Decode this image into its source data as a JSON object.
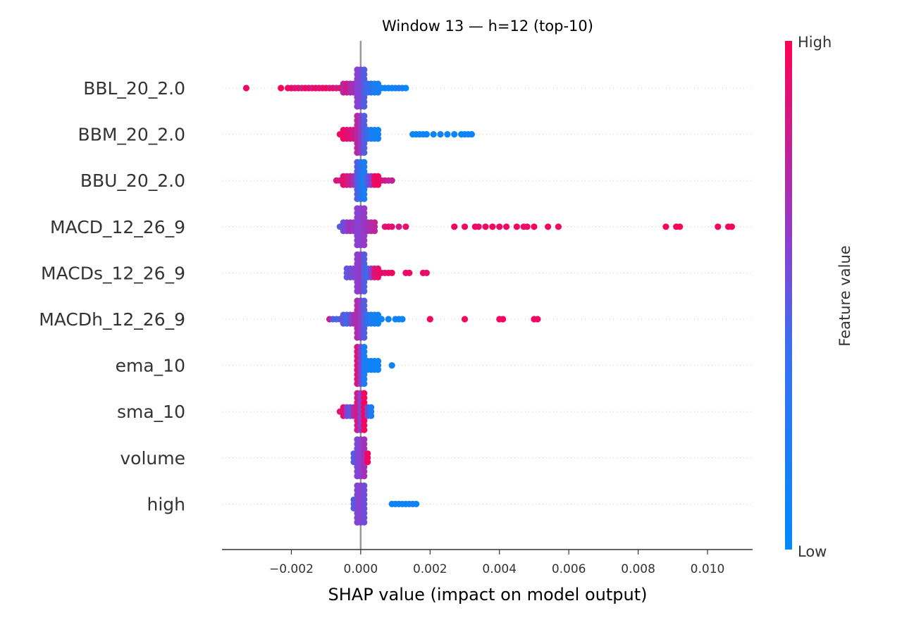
{
  "chart_data": {
    "type": "scatter",
    "subtype": "shap-beeswarm",
    "title": "Window 13 — h=12 (top-10)",
    "xlabel": "SHAP value (impact on model output)",
    "xlim": [
      -0.004,
      0.0113
    ],
    "xticks": [
      -0.002,
      0.0,
      0.002,
      0.004,
      0.006,
      0.008,
      0.01
    ],
    "xtick_labels": [
      "−0.002",
      "0.000",
      "0.002",
      "0.004",
      "0.006",
      "0.008",
      "0.010"
    ],
    "zero_line": 0.0,
    "grid": "dotted horizontal per feature",
    "colorbar": {
      "title": "Feature value",
      "high_label": "High",
      "low_label": "Low",
      "low_color": "#008bfb",
      "high_color": "#ff0052"
    },
    "features": [
      {
        "name": "BBL_20_2.0",
        "points": [
          {
            "x": -0.0033,
            "f": 0.92
          },
          {
            "x": -0.0023,
            "f": 0.98
          },
          {
            "x": -0.0021,
            "f": 0.9
          },
          {
            "x": -0.002,
            "f": 0.95
          },
          {
            "x": -0.0019,
            "f": 0.85
          },
          {
            "x": -0.0018,
            "f": 0.9
          },
          {
            "x": -0.0017,
            "f": 0.8
          },
          {
            "x": -0.0016,
            "f": 0.95
          },
          {
            "x": -0.0015,
            "f": 0.88
          },
          {
            "x": -0.0014,
            "f": 0.82
          },
          {
            "x": -0.0013,
            "f": 0.92
          },
          {
            "x": -0.0012,
            "f": 0.86
          },
          {
            "x": -0.0011,
            "f": 0.9
          },
          {
            "x": -0.001,
            "f": 0.95
          },
          {
            "x": -0.0009,
            "f": 0.84
          },
          {
            "x": -0.0008,
            "f": 0.9
          },
          {
            "x": -0.0007,
            "f": 0.78
          },
          {
            "x": -0.0006,
            "f": 0.85
          },
          {
            "x": -0.0005,
            "f": 0.7
          },
          {
            "x": -0.0004,
            "f": 0.8
          },
          {
            "x": -0.0003,
            "f": 0.65
          },
          {
            "x": -0.0002,
            "f": 0.6
          },
          {
            "x": -0.0001,
            "f": 0.5
          },
          {
            "x": 0.0,
            "f": 0.45
          },
          {
            "x": 0.0001,
            "f": 0.3
          },
          {
            "x": 0.0002,
            "f": 0.2
          },
          {
            "x": 0.0003,
            "f": 0.15
          },
          {
            "x": 0.0004,
            "f": 0.1
          },
          {
            "x": 0.0005,
            "f": 0.08
          },
          {
            "x": 0.0006,
            "f": 0.05
          },
          {
            "x": 0.0007,
            "f": 0.06
          },
          {
            "x": 0.0008,
            "f": 0.04
          },
          {
            "x": 0.0009,
            "f": 0.05
          },
          {
            "x": 0.001,
            "f": 0.03
          },
          {
            "x": 0.0011,
            "f": 0.12
          },
          {
            "x": 0.0012,
            "f": 0.06
          },
          {
            "x": 0.0013,
            "f": 0.02
          }
        ]
      },
      {
        "name": "BBM_20_2.0",
        "points": [
          {
            "x": -0.0006,
            "f": 0.9
          },
          {
            "x": -0.0005,
            "f": 0.95
          },
          {
            "x": -0.0004,
            "f": 0.88
          },
          {
            "x": -0.0003,
            "f": 0.85
          },
          {
            "x": -0.0002,
            "f": 0.8
          },
          {
            "x": -0.0001,
            "f": 0.7
          },
          {
            "x": 0.0,
            "f": 0.55
          },
          {
            "x": 0.0001,
            "f": 0.3
          },
          {
            "x": 0.0002,
            "f": 0.2
          },
          {
            "x": 0.0003,
            "f": 0.1
          },
          {
            "x": 0.0004,
            "f": 0.08
          },
          {
            "x": 0.0005,
            "f": 0.05
          },
          {
            "x": 0.0015,
            "f": 0.05
          },
          {
            "x": 0.0016,
            "f": 0.03
          },
          {
            "x": 0.0017,
            "f": 0.06
          },
          {
            "x": 0.0018,
            "f": 0.04
          },
          {
            "x": 0.0019,
            "f": 0.05
          },
          {
            "x": 0.0021,
            "f": 0.03
          },
          {
            "x": 0.0023,
            "f": 0.06
          },
          {
            "x": 0.0025,
            "f": 0.04
          },
          {
            "x": 0.0027,
            "f": 0.05
          },
          {
            "x": 0.0029,
            "f": 0.03
          },
          {
            "x": 0.003,
            "f": 0.05
          },
          {
            "x": 0.0031,
            "f": 0.04
          },
          {
            "x": 0.0032,
            "f": 0.06
          }
        ]
      },
      {
        "name": "BBU_20_2.0",
        "points": [
          {
            "x": -0.0007,
            "f": 0.85
          },
          {
            "x": -0.0006,
            "f": 0.8
          },
          {
            "x": -0.0005,
            "f": 0.9
          },
          {
            "x": -0.0004,
            "f": 0.82
          },
          {
            "x": -0.0003,
            "f": 0.75
          },
          {
            "x": -0.0002,
            "f": 0.6
          },
          {
            "x": -0.0001,
            "f": 0.3
          },
          {
            "x": 0.0,
            "f": 0.15
          },
          {
            "x": 0.0001,
            "f": 0.1
          },
          {
            "x": 0.0002,
            "f": 0.3
          },
          {
            "x": 0.0003,
            "f": 0.5
          },
          {
            "x": 0.0004,
            "f": 0.92
          },
          {
            "x": 0.0005,
            "f": 0.95
          },
          {
            "x": 0.0006,
            "f": 0.88
          },
          {
            "x": 0.0007,
            "f": 0.8
          },
          {
            "x": 0.0008,
            "f": 0.7
          },
          {
            "x": 0.0009,
            "f": 0.75
          }
        ]
      },
      {
        "name": "MACD_12_26_9",
        "points": [
          {
            "x": -0.0006,
            "f": 0.3
          },
          {
            "x": -0.0005,
            "f": 0.4
          },
          {
            "x": -0.0004,
            "f": 0.5
          },
          {
            "x": -0.0003,
            "f": 0.6
          },
          {
            "x": -0.0002,
            "f": 0.55
          },
          {
            "x": -0.0001,
            "f": 0.5
          },
          {
            "x": 0.0,
            "f": 0.5
          },
          {
            "x": 0.0001,
            "f": 0.55
          },
          {
            "x": 0.0002,
            "f": 0.6
          },
          {
            "x": 0.0003,
            "f": 0.65
          },
          {
            "x": 0.0004,
            "f": 0.7
          },
          {
            "x": 0.0007,
            "f": 0.85
          },
          {
            "x": 0.0008,
            "f": 0.9
          },
          {
            "x": 0.0009,
            "f": 0.88
          },
          {
            "x": 0.0011,
            "f": 0.8
          },
          {
            "x": 0.0013,
            "f": 0.9
          },
          {
            "x": 0.0027,
            "f": 0.95
          },
          {
            "x": 0.003,
            "f": 0.92
          },
          {
            "x": 0.0033,
            "f": 0.95
          },
          {
            "x": 0.0034,
            "f": 0.9
          },
          {
            "x": 0.0036,
            "f": 0.93
          },
          {
            "x": 0.0038,
            "f": 0.95
          },
          {
            "x": 0.004,
            "f": 0.92
          },
          {
            "x": 0.0042,
            "f": 0.94
          },
          {
            "x": 0.0045,
            "f": 0.95
          },
          {
            "x": 0.0047,
            "f": 0.9
          },
          {
            "x": 0.0048,
            "f": 0.93
          },
          {
            "x": 0.005,
            "f": 0.96
          },
          {
            "x": 0.0054,
            "f": 0.95
          },
          {
            "x": 0.0057,
            "f": 0.94
          },
          {
            "x": 0.0088,
            "f": 0.96
          },
          {
            "x": 0.0091,
            "f": 0.95
          },
          {
            "x": 0.0092,
            "f": 0.97
          },
          {
            "x": 0.0103,
            "f": 0.96
          },
          {
            "x": 0.0106,
            "f": 0.95
          },
          {
            "x": 0.0107,
            "f": 0.97
          }
        ]
      },
      {
        "name": "MACDs_12_26_9",
        "points": [
          {
            "x": -0.0004,
            "f": 0.35
          },
          {
            "x": -0.0003,
            "f": 0.4
          },
          {
            "x": -0.0002,
            "f": 0.45
          },
          {
            "x": -0.0001,
            "f": 0.5
          },
          {
            "x": 0.0,
            "f": 0.55
          },
          {
            "x": 0.0001,
            "f": 0.3
          },
          {
            "x": 0.0002,
            "f": 0.2
          },
          {
            "x": 0.0003,
            "f": 0.5
          },
          {
            "x": 0.0004,
            "f": 0.85
          },
          {
            "x": 0.0005,
            "f": 0.9
          },
          {
            "x": 0.0006,
            "f": 0.92
          },
          {
            "x": 0.0007,
            "f": 0.88
          },
          {
            "x": 0.0008,
            "f": 0.9
          },
          {
            "x": 0.0009,
            "f": 0.95
          },
          {
            "x": 0.0013,
            "f": 0.9
          },
          {
            "x": 0.0014,
            "f": 0.93
          },
          {
            "x": 0.0018,
            "f": 0.95
          },
          {
            "x": 0.0019,
            "f": 0.9
          }
        ]
      },
      {
        "name": "MACDh_12_26_9",
        "points": [
          {
            "x": -0.0009,
            "f": 0.75
          },
          {
            "x": -0.0008,
            "f": 0.3
          },
          {
            "x": -0.0007,
            "f": 0.25
          },
          {
            "x": -0.0006,
            "f": 0.3
          },
          {
            "x": -0.0005,
            "f": 0.35
          },
          {
            "x": -0.0004,
            "f": 0.2
          },
          {
            "x": -0.0003,
            "f": 0.4
          },
          {
            "x": -0.0002,
            "f": 0.6
          },
          {
            "x": -0.0001,
            "f": 0.65
          },
          {
            "x": 0.0,
            "f": 0.55
          },
          {
            "x": 0.0001,
            "f": 0.3
          },
          {
            "x": 0.0002,
            "f": 0.15
          },
          {
            "x": 0.0003,
            "f": 0.1
          },
          {
            "x": 0.0004,
            "f": 0.08
          },
          {
            "x": 0.0005,
            "f": 0.05
          },
          {
            "x": 0.0006,
            "f": 0.04
          },
          {
            "x": 0.0008,
            "f": 0.05
          },
          {
            "x": 0.001,
            "f": 0.04
          },
          {
            "x": 0.0011,
            "f": 0.06
          },
          {
            "x": 0.0012,
            "f": 0.05
          },
          {
            "x": 0.002,
            "f": 0.95
          },
          {
            "x": 0.003,
            "f": 0.95
          },
          {
            "x": 0.004,
            "f": 0.93
          },
          {
            "x": 0.0041,
            "f": 0.96
          },
          {
            "x": 0.005,
            "f": 0.95
          },
          {
            "x": 0.0051,
            "f": 0.93
          }
        ]
      },
      {
        "name": "ema_10",
        "points": [
          {
            "x": -0.0001,
            "f": 0.85
          },
          {
            "x": 0.0,
            "f": 0.5
          },
          {
            "x": 0.0001,
            "f": 0.1
          },
          {
            "x": 0.0002,
            "f": 0.08
          },
          {
            "x": 0.0003,
            "f": 0.05
          },
          {
            "x": 0.0004,
            "f": 0.06
          },
          {
            "x": 0.0005,
            "f": 0.04
          },
          {
            "x": 0.0009,
            "f": 0.05
          }
        ]
      },
      {
        "name": "sma_10",
        "points": [
          {
            "x": -0.0006,
            "f": 0.85
          },
          {
            "x": -0.0005,
            "f": 0.9
          },
          {
            "x": -0.0004,
            "f": 0.5
          },
          {
            "x": -0.0003,
            "f": 0.3
          },
          {
            "x": -0.0002,
            "f": 0.7
          },
          {
            "x": -0.0001,
            "f": 0.8
          },
          {
            "x": 0.0,
            "f": 0.5
          },
          {
            "x": 0.0001,
            "f": 0.95
          },
          {
            "x": 0.0002,
            "f": 0.4
          },
          {
            "x": 0.0003,
            "f": 0.1
          }
        ]
      },
      {
        "name": "volume",
        "points": [
          {
            "x": -0.0002,
            "f": 0.3
          },
          {
            "x": -0.0001,
            "f": 0.45
          },
          {
            "x": 0.0,
            "f": 0.5
          },
          {
            "x": 0.0001,
            "f": 0.6
          },
          {
            "x": 0.0002,
            "f": 0.95
          }
        ]
      },
      {
        "name": "high",
        "points": [
          {
            "x": -0.0002,
            "f": 0.3
          },
          {
            "x": -0.0001,
            "f": 0.45
          },
          {
            "x": 0.0,
            "f": 0.5
          },
          {
            "x": 0.0001,
            "f": 0.4
          },
          {
            "x": 0.0009,
            "f": 0.05
          },
          {
            "x": 0.001,
            "f": 0.06
          },
          {
            "x": 0.0011,
            "f": 0.04
          },
          {
            "x": 0.0012,
            "f": 0.05
          },
          {
            "x": 0.0013,
            "f": 0.06
          },
          {
            "x": 0.0014,
            "f": 0.04
          },
          {
            "x": 0.0015,
            "f": 0.1
          },
          {
            "x": 0.0016,
            "f": 0.05
          }
        ]
      }
    ]
  }
}
